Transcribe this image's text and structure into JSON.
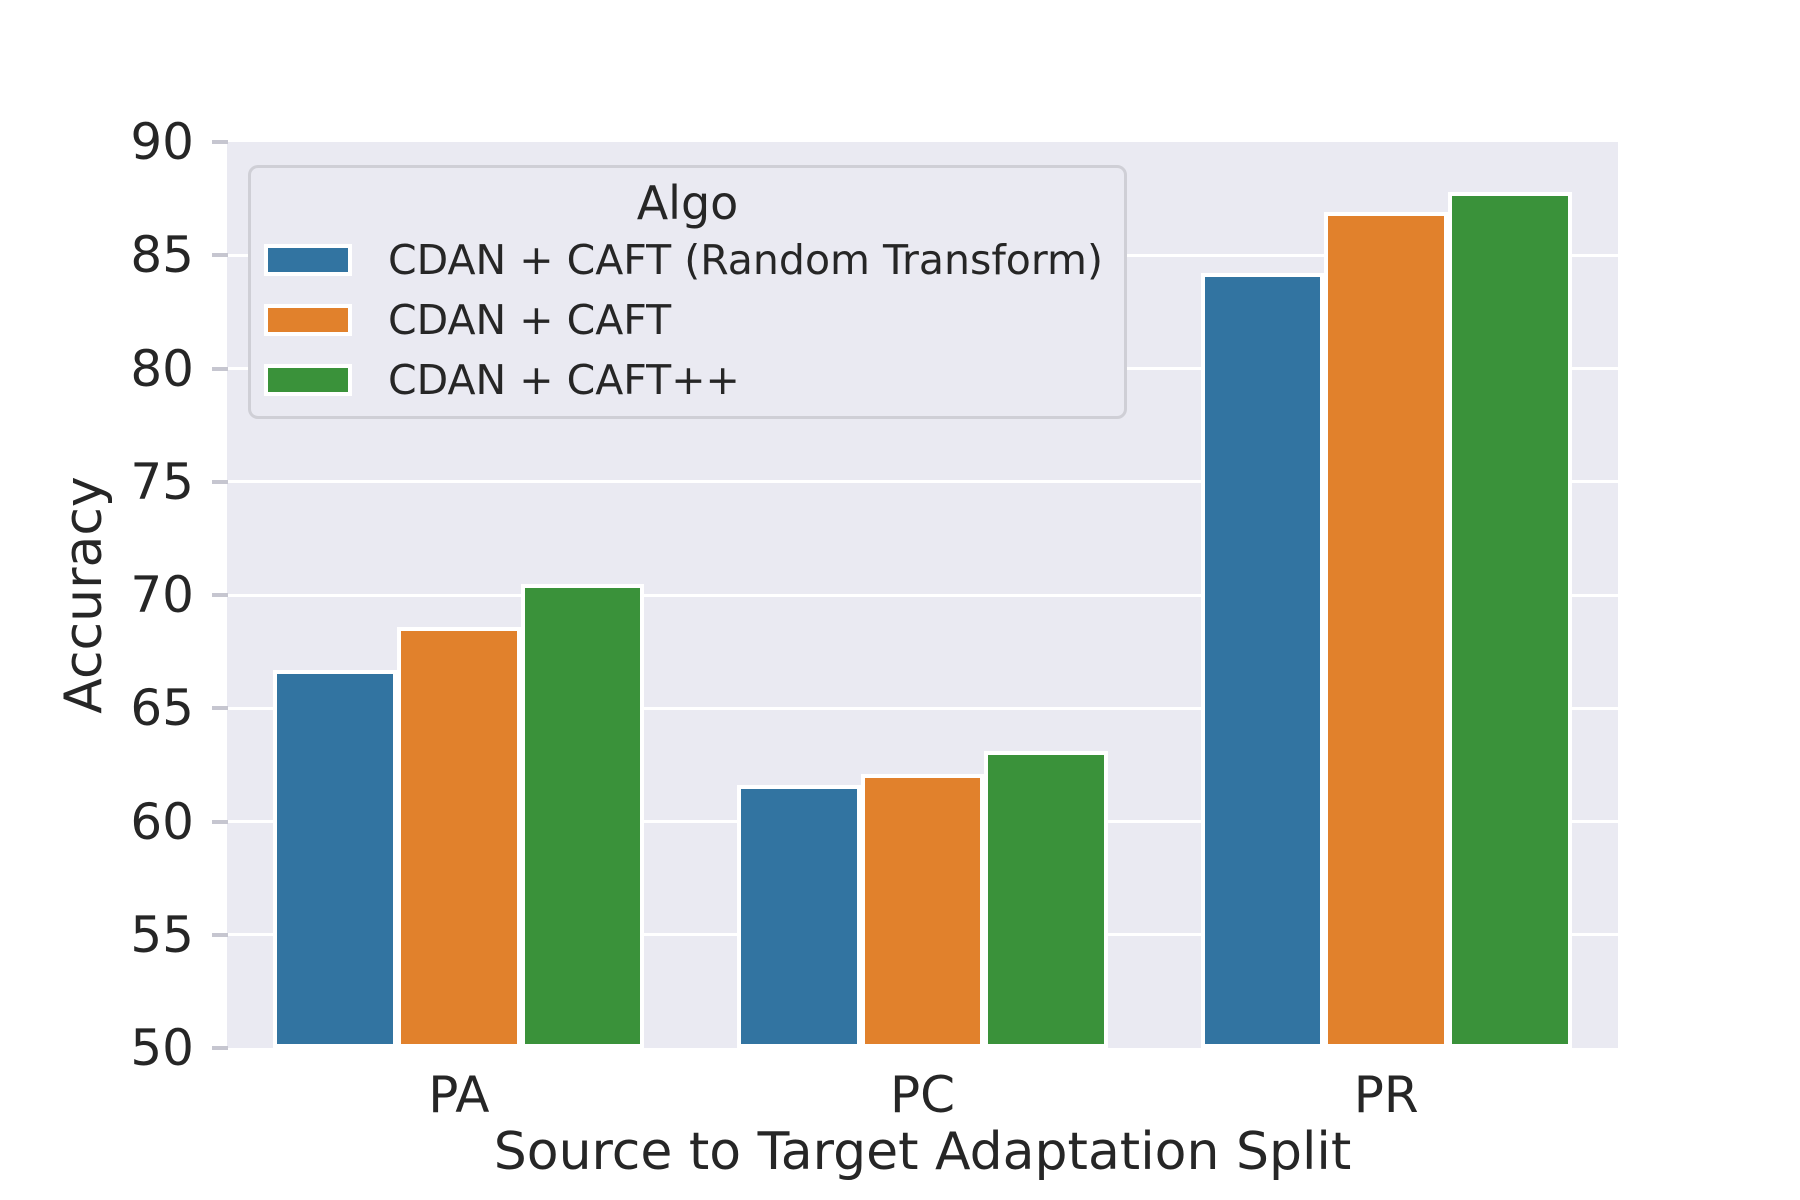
{
  "style": {
    "figure_bg": "#ffffff",
    "axes_bg": "#eaeaf2",
    "grid_color": "#ffffff",
    "text_color": "#262626",
    "bar_edge_color": "#ffffff",
    "legend_border_color": "#cfcfd6",
    "tick_mark_color": "#c6c6d0"
  },
  "chart_data": {
    "type": "bar",
    "title": "",
    "xlabel": "Source to Target Adaptation Split",
    "ylabel": "Accuracy",
    "categories": [
      "PA",
      "PC",
      "PR"
    ],
    "series": [
      {
        "name": "CDAN + CAFT (Random Transform)",
        "color": "#3274a1",
        "values": [
          66.7,
          61.6,
          84.2
        ]
      },
      {
        "name": "CDAN + CAFT",
        "color": "#e1812c",
        "values": [
          68.6,
          62.1,
          86.9
        ]
      },
      {
        "name": "CDAN + CAFT++",
        "color": "#3a923a",
        "values": [
          70.5,
          63.1,
          87.8
        ]
      }
    ],
    "legend": {
      "title": "Algo",
      "position": "upper left",
      "entries": [
        "CDAN + CAFT (Random Transform)",
        "CDAN + CAFT",
        "CDAN + CAFT++"
      ]
    },
    "ylim": [
      50,
      90
    ],
    "yticks": [
      50,
      55,
      60,
      65,
      70,
      75,
      80,
      85,
      90
    ],
    "grid": true,
    "bar_group_width_fraction": 0.8
  }
}
